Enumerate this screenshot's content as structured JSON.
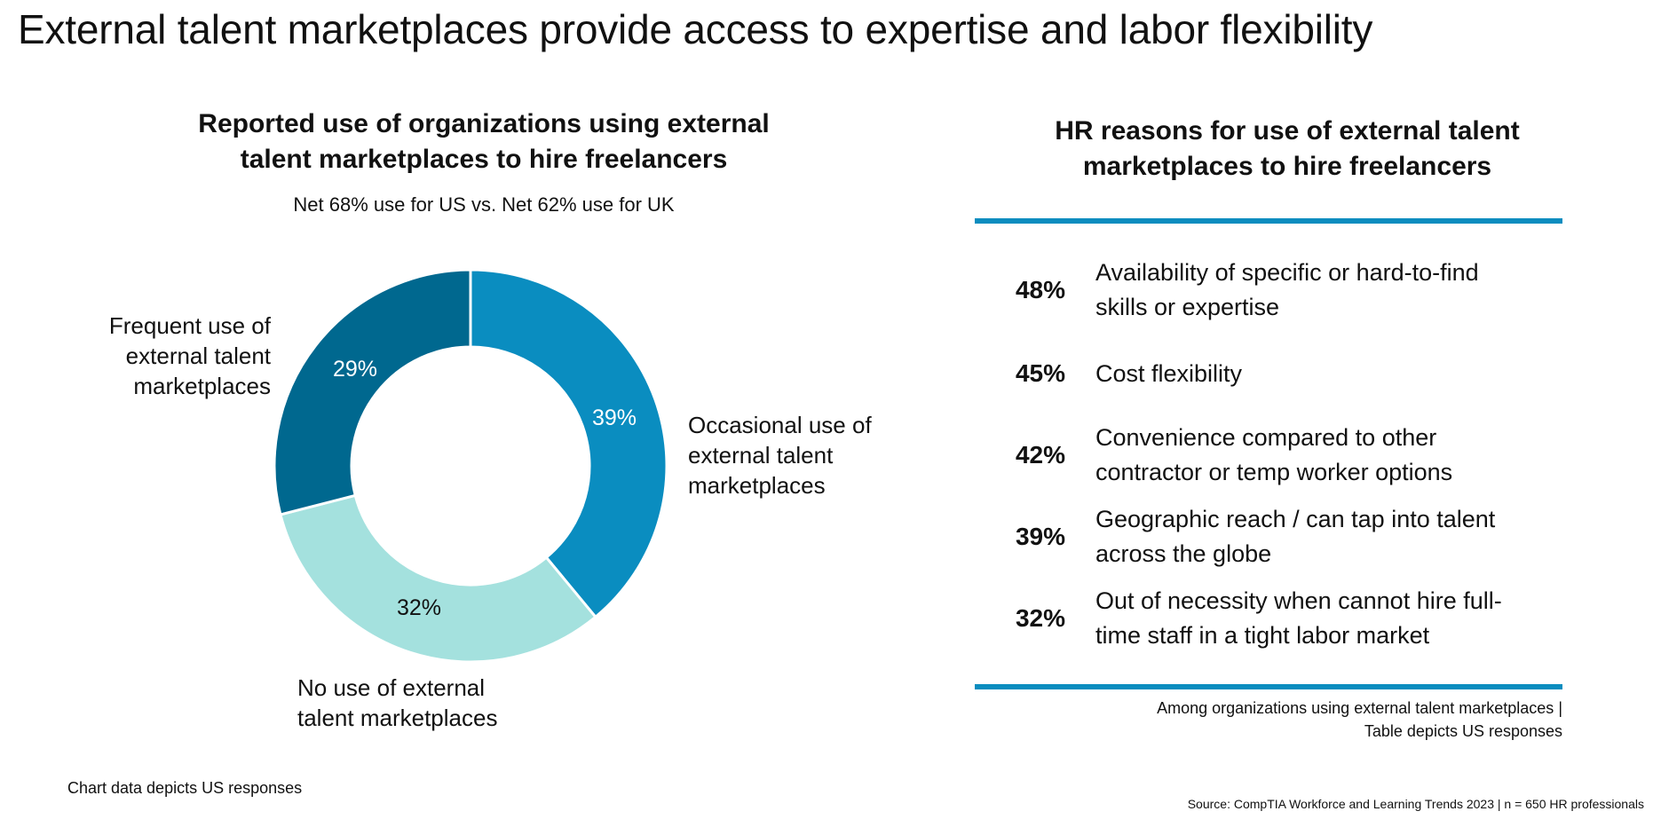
{
  "page": {
    "title": "External talent marketplaces provide access to expertise and labor flexibility",
    "source": "Source: CompTIA Workforce and Learning Trends 2023 | n = 650 HR professionals"
  },
  "left_panel": {
    "title_line1": "Reported use of organizations using external",
    "title_line2": "talent marketplaces to hire freelancers",
    "subtitle": "Net 68% use for US vs. Net 62% use for UK",
    "note": "Chart data depicts US responses"
  },
  "right_panel": {
    "title_line1": "HR reasons for use of external talent",
    "title_line2": "marketplaces to hire freelancers",
    "note_line1": "Among organizations using external talent marketplaces |",
    "note_line2": "Table depicts US  responses",
    "reasons": [
      {
        "pct": "48%",
        "line1": "Availability of specific or hard-to-find",
        "line2": "skills or expertise"
      },
      {
        "pct": "45%",
        "line1": "Cost flexibility",
        "line2": ""
      },
      {
        "pct": "42%",
        "line1": "Convenience compared to other",
        "line2": "contractor or temp worker options"
      },
      {
        "pct": "39%",
        "line1": "Geographic reach / can tap into talent",
        "line2": "across the globe"
      },
      {
        "pct": "32%",
        "line1": "Out of necessity when cannot hire full-",
        "line2": "time staff in a tight labor market"
      }
    ]
  },
  "chart_data": {
    "type": "pie",
    "donut": true,
    "title": "",
    "categories": [
      "Occasional use of external talent marketplaces",
      "No use of external talent marketplaces",
      "Frequent use of external talent marketplaces"
    ],
    "values": [
      39,
      32,
      29
    ],
    "value_labels": [
      "39%",
      "32%",
      "29%"
    ],
    "label_lines": [
      [
        "Occasional use of",
        "external talent",
        "marketplaces"
      ],
      [
        "No use of external",
        "talent marketplaces"
      ],
      [
        "Frequent use of",
        "external talent",
        "marketplaces"
      ]
    ],
    "colors": [
      "#0a8dc0",
      "#a4e1de",
      "#00688f"
    ],
    "start": "12 o'clock, clockwise"
  }
}
